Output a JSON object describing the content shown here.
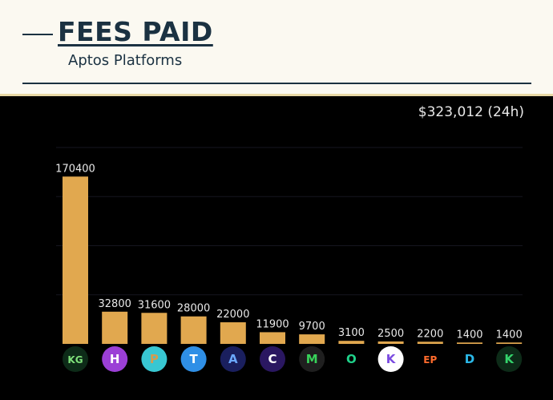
{
  "header": {
    "title": "FEES PAID",
    "subtitle": "Aptos Platforms"
  },
  "total_label": "$323,012 (24h)",
  "colors": {
    "background_header": "#fbf9f1",
    "title": "#1b3242",
    "chart_background": "#000000",
    "bar": "#e1a84f",
    "label": "#e8e8e8"
  },
  "chart_data": {
    "type": "bar",
    "title": "FEES PAID",
    "subtitle": "Aptos Platforms",
    "categories": [
      "",
      "",
      "",
      "",
      "",
      "",
      "",
      "",
      "",
      "",
      "",
      ""
    ],
    "values": [
      170400,
      32800,
      31600,
      28000,
      22000,
      11900,
      9700,
      3100,
      2500,
      2200,
      1400,
      1400
    ],
    "data_labels": [
      "170400",
      "32800",
      "31600",
      "28000",
      "22000",
      "11900",
      "9700",
      "3100",
      "2500",
      "2200",
      "1400",
      "1400"
    ],
    "ylim": [
      0,
      200000
    ],
    "grid": true,
    "xlabel": "",
    "ylabel": "",
    "category_icons": [
      {
        "name": "kgen-icon",
        "bg": "#0d2b18",
        "fg": "#7fe07a",
        "text": "KG"
      },
      {
        "name": "hyperion-icon",
        "bg": "#9b3fd6",
        "fg": "#ffffff",
        "text": "H"
      },
      {
        "name": "pancakeswap-icon",
        "bg": "#38c7d2",
        "fg": "#d59b4f",
        "text": "P"
      },
      {
        "name": "thala-icon",
        "bg": "#2f8fe6",
        "fg": "#ffffff",
        "text": "T"
      },
      {
        "name": "aries-icon",
        "bg": "#1a1f5e",
        "fg": "#6aa8ff",
        "text": "A"
      },
      {
        "name": "cellana-icon",
        "bg": "#2a1761",
        "fg": "#ffffff",
        "text": "C"
      },
      {
        "name": "merkle-icon",
        "bg": "#1f1f1f",
        "fg": "#38d35a",
        "text": "M"
      },
      {
        "name": "panora-icon",
        "bg": "#000000",
        "fg": "#1fd18a",
        "text": "O"
      },
      {
        "name": "kana-icon",
        "bg": "#ffffff",
        "fg": "#7a4be0",
        "text": "K"
      },
      {
        "name": "echelon-icon",
        "bg": "#000000",
        "fg": "#ff6b2c",
        "text": "EP"
      },
      {
        "name": "tapp-icon",
        "bg": "#000000",
        "fg": "#2bb8e8",
        "text": "D"
      },
      {
        "name": "kofi-icon",
        "bg": "#0d2b18",
        "fg": "#34d36b",
        "text": "K"
      }
    ]
  }
}
